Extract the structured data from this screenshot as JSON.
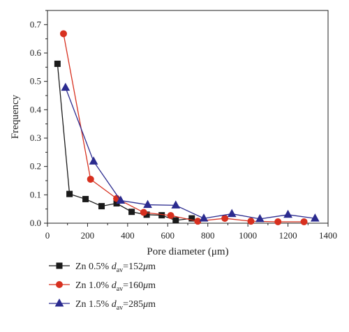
{
  "chart_data": {
    "type": "line",
    "title": "",
    "xlabel": "Pore diameter (μm)",
    "ylabel": "Frequency",
    "xlim": [
      0,
      1400
    ],
    "ylim": [
      0,
      0.75
    ],
    "xticks": [
      0,
      200,
      400,
      600,
      800,
      1000,
      1200,
      1400
    ],
    "xtick_labels": [
      "0",
      "200",
      "400",
      "600",
      "800",
      "1000",
      "1200",
      "1400"
    ],
    "yticks": [
      0.0,
      0.1,
      0.2,
      0.3,
      0.4,
      0.5,
      0.6,
      0.7
    ],
    "ytick_labels": [
      "0.0",
      "0.1",
      "0.2",
      "0.3",
      "0.4",
      "0.5",
      "0.6",
      "0.7"
    ],
    "grid": false,
    "legend_position": "bottom-left, below plot",
    "series": [
      {
        "name": "Zn 0.5%",
        "legend_sub": {
          "prefix": "Zn 0.5% ",
          "var": "d",
          "sub": "av",
          "suffix": "=152",
          "unit_mu": "μ",
          "unit_rest": "m"
        },
        "color": "#1a1a1a",
        "marker": "square",
        "x": [
          50,
          110,
          190,
          270,
          345,
          420,
          495,
          570,
          640,
          720
        ],
        "y": [
          0.562,
          0.103,
          0.085,
          0.06,
          0.07,
          0.04,
          0.03,
          0.028,
          0.01,
          0.017
        ]
      },
      {
        "name": "Zn 1.0%",
        "legend_sub": {
          "prefix": "Zn 1.0% ",
          "var": "d",
          "sub": "av",
          "suffix": "=160",
          "unit_mu": "μ",
          "unit_rest": "m"
        },
        "color": "#d7301f",
        "marker": "circle",
        "x": [
          80,
          215,
          345,
          480,
          615,
          750,
          885,
          1015,
          1150,
          1280
        ],
        "y": [
          0.668,
          0.155,
          0.087,
          0.038,
          0.027,
          0.007,
          0.017,
          0.007,
          0.005,
          0.005
        ]
      },
      {
        "name": "Zn 1.5%",
        "legend_sub": {
          "prefix": "Zn 1.5% ",
          "var": "d",
          "sub": "av",
          "suffix": "=285",
          "unit_mu": "μ",
          "unit_rest": "m"
        },
        "color": "#2b2b8f",
        "marker": "triangle",
        "x": [
          90,
          230,
          365,
          500,
          640,
          780,
          920,
          1060,
          1200,
          1335
        ],
        "y": [
          0.478,
          0.218,
          0.08,
          0.065,
          0.063,
          0.017,
          0.033,
          0.015,
          0.03,
          0.017
        ]
      }
    ]
  }
}
